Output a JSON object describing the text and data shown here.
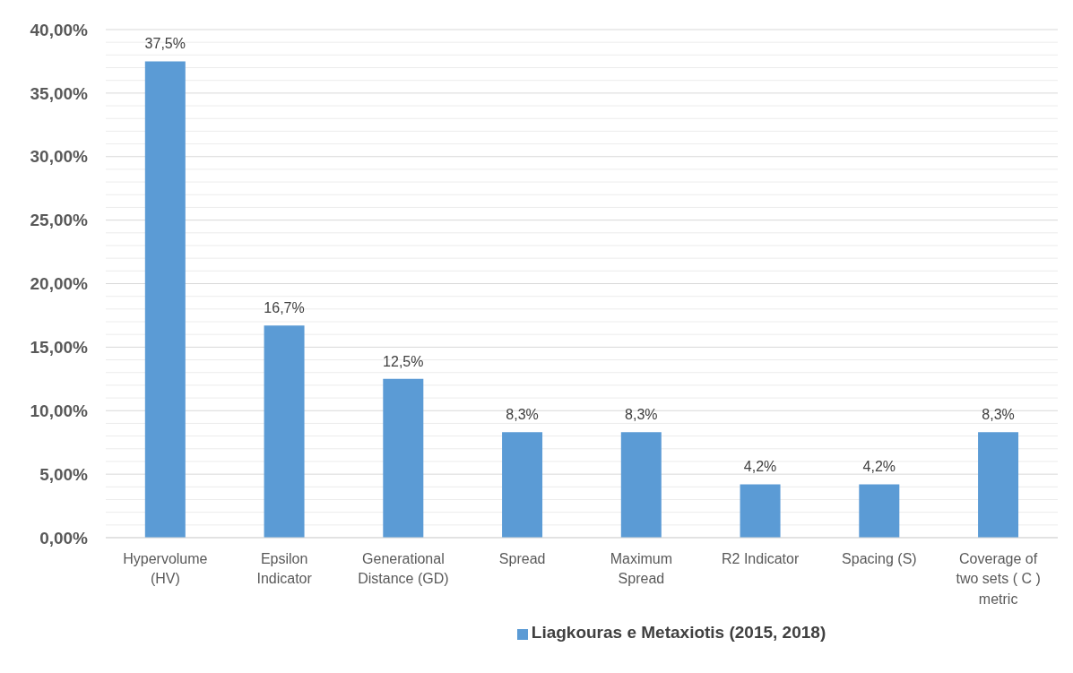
{
  "chart_data": {
    "type": "bar",
    "categories": [
      "Hypervolume (HV)",
      "Epsilon Indicator",
      "Generational Distance (GD)",
      "Spread",
      "Maximum Spread",
      "R2 Indicator",
      "Spacing (S)",
      "Coverage of two sets ( C ) metric"
    ],
    "series": [
      {
        "name": "Liagkouras e Metaxiotis (2015, 2018)",
        "color": "#5b9bd5",
        "values": [
          37.5,
          16.7,
          12.5,
          8.3,
          8.3,
          4.2,
          4.2,
          8.3
        ],
        "value_labels": [
          "37,5%",
          "16,7%",
          "12,5%",
          "8,3%",
          "8,3%",
          "4,2%",
          "4,2%",
          "8,3%"
        ]
      }
    ],
    "ylim": [
      0,
      40
    ],
    "yticks": [
      {
        "value": 0,
        "label": "0,00%"
      },
      {
        "value": 1,
        "label": null
      },
      {
        "value": 2,
        "label": null
      },
      {
        "value": 3,
        "label": null
      },
      {
        "value": 4,
        "label": null
      },
      {
        "value": 5,
        "label": "5,00%"
      },
      {
        "value": 6,
        "label": null
      },
      {
        "value": 7,
        "label": null
      },
      {
        "value": 8,
        "label": null
      },
      {
        "value": 9,
        "label": null
      },
      {
        "value": 10,
        "label": "10,00%"
      },
      {
        "value": 11,
        "label": null
      },
      {
        "value": 12,
        "label": null
      },
      {
        "value": 13,
        "label": null
      },
      {
        "value": 14,
        "label": null
      },
      {
        "value": 15,
        "label": "15,00%"
      },
      {
        "value": 16,
        "label": null
      },
      {
        "value": 17,
        "label": null
      },
      {
        "value": 18,
        "label": null
      },
      {
        "value": 19,
        "label": null
      },
      {
        "value": 20,
        "label": "20,00%"
      },
      {
        "value": 21,
        "label": null
      },
      {
        "value": 22,
        "label": null
      },
      {
        "value": 23,
        "label": null
      },
      {
        "value": 24,
        "label": null
      },
      {
        "value": 25,
        "label": "25,00%"
      },
      {
        "value": 26,
        "label": null
      },
      {
        "value": 27,
        "label": null
      },
      {
        "value": 28,
        "label": null
      },
      {
        "value": 29,
        "label": null
      },
      {
        "value": 30,
        "label": "30,00%"
      },
      {
        "value": 31,
        "label": null
      },
      {
        "value": 32,
        "label": null
      },
      {
        "value": 33,
        "label": null
      },
      {
        "value": 34,
        "label": null
      },
      {
        "value": 35,
        "label": "35,00%"
      },
      {
        "value": 36,
        "label": null
      },
      {
        "value": 37,
        "label": null
      },
      {
        "value": 38,
        "label": null
      },
      {
        "value": 39,
        "label": null
      },
      {
        "value": 40,
        "label": "40,00%"
      }
    ],
    "grid": "y",
    "legend": "bottom"
  }
}
